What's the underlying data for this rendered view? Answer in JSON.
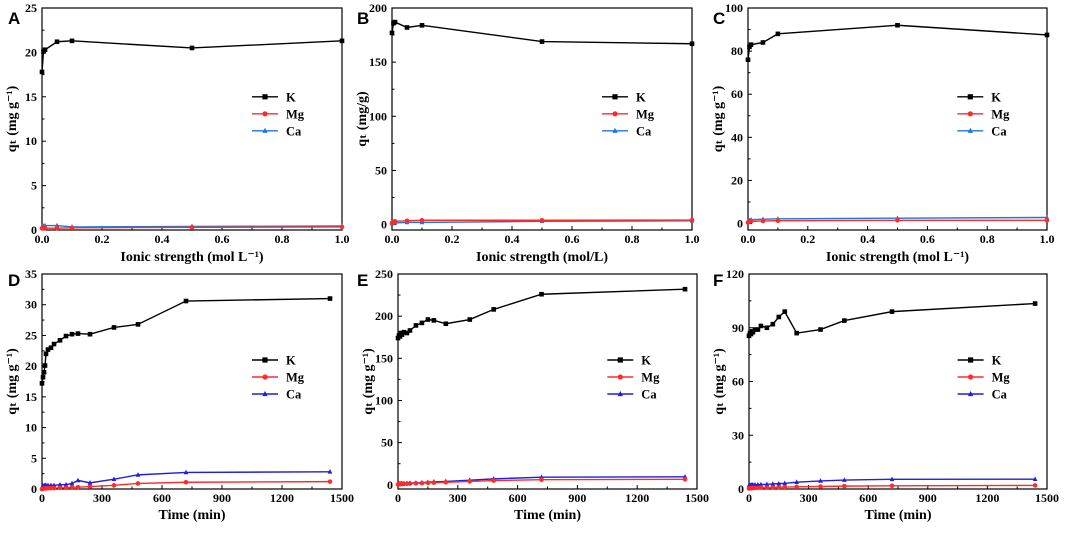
{
  "colors": {
    "K": "#000000",
    "Mg": "#ff2a2a",
    "Ca_top": "#1f77d4",
    "Ca_bottom": "#1f1fdc"
  },
  "chart_data": [
    {
      "panel": "A",
      "type": "line",
      "xlabel": "Ionic strength (mol L⁻¹)",
      "ylabel": "qₜ (mg g⁻¹)",
      "xlim": [
        0,
        1.0
      ],
      "ylim": [
        0,
        25
      ],
      "xticks": [
        "0.0",
        "0.2",
        "0.4",
        "0.6",
        "0.8",
        "1.0"
      ],
      "yticks": [
        "0",
        "5",
        "10",
        "15",
        "20",
        "25"
      ],
      "legend_position": "center-right",
      "series": [
        {
          "name": "K",
          "marker": "square",
          "x": [
            0,
            0.005,
            0.01,
            0.05,
            0.1,
            0.5,
            1.0
          ],
          "y": [
            17.8,
            20.1,
            20.3,
            21.2,
            21.3,
            20.5,
            21.3
          ]
        },
        {
          "name": "Mg",
          "marker": "circle",
          "x": [
            0,
            0.005,
            0.01,
            0.05,
            0.1,
            0.5,
            1.0
          ],
          "y": [
            0.2,
            0.2,
            0.2,
            0.2,
            0.25,
            0.3,
            0.35
          ]
        },
        {
          "name": "Ca",
          "marker": "triangle",
          "x": [
            0,
            0.005,
            0.01,
            0.05,
            0.1,
            0.5,
            1.0
          ],
          "y": [
            0.35,
            0.45,
            0.5,
            0.5,
            0.35,
            0.4,
            0.45
          ]
        }
      ]
    },
    {
      "panel": "B",
      "type": "line",
      "xlabel": "Ionic strength (mol/L)",
      "ylabel": "qₜ (mg/g)",
      "xlim": [
        0,
        1.0
      ],
      "ylim": [
        -5,
        200
      ],
      "xticks": [
        "0.0",
        "0.2",
        "0.4",
        "0.6",
        "0.8",
        "1.0"
      ],
      "yticks": [
        "0",
        "50",
        "100",
        "150",
        "200"
      ],
      "legend_position": "center-right",
      "series": [
        {
          "name": "K",
          "marker": "square",
          "x": [
            0,
            0.005,
            0.01,
            0.05,
            0.1,
            0.5,
            1.0
          ],
          "y": [
            177,
            186,
            187,
            182,
            184,
            169,
            167
          ]
        },
        {
          "name": "Mg",
          "marker": "circle",
          "x": [
            0,
            0.005,
            0.01,
            0.05,
            0.1,
            0.5,
            1.0
          ],
          "y": [
            1.5,
            2.5,
            3,
            3.5,
            4,
            4,
            4.2
          ]
        },
        {
          "name": "Ca",
          "marker": "triangle",
          "x": [
            0,
            0.005,
            0.01,
            0.05,
            0.1,
            0.5,
            1.0
          ],
          "y": [
            1,
            1.5,
            1.5,
            2,
            2,
            3,
            3.5
          ]
        }
      ]
    },
    {
      "panel": "C",
      "type": "line",
      "xlabel": "Ionic strength (mol L⁻¹)",
      "ylabel": "qₜ (mg g⁻¹)",
      "xlim": [
        0,
        1.0
      ],
      "ylim": [
        -3,
        100
      ],
      "xticks": [
        "0.0",
        "0.2",
        "0.4",
        "0.6",
        "0.8",
        "1.0"
      ],
      "yticks": [
        "0",
        "20",
        "40",
        "60",
        "80",
        "100"
      ],
      "legend_position": "center-right",
      "series": [
        {
          "name": "K",
          "marker": "square",
          "x": [
            0,
            0.005,
            0.01,
            0.05,
            0.1,
            0.5,
            1.0
          ],
          "y": [
            76,
            82,
            83,
            84,
            88,
            92,
            87.5
          ]
        },
        {
          "name": "Mg",
          "marker": "circle",
          "x": [
            0,
            0.005,
            0.01,
            0.05,
            0.1,
            0.5,
            1.0
          ],
          "y": [
            0.5,
            0.8,
            1,
            1.2,
            1.3,
            1.5,
            1.5
          ]
        },
        {
          "name": "Ca",
          "marker": "triangle",
          "x": [
            0,
            0.005,
            0.01,
            0.05,
            0.1,
            0.5,
            1.0
          ],
          "y": [
            1,
            1.5,
            1.8,
            2,
            2.2,
            2.5,
            2.8
          ]
        }
      ]
    },
    {
      "panel": "D",
      "type": "line",
      "xlabel": "Time (min)",
      "ylabel": "qₜ (mg g⁻¹)",
      "xlim": [
        0,
        1500
      ],
      "ylim": [
        0,
        35
      ],
      "xticks": [
        "0",
        "300",
        "600",
        "900",
        "1200",
        "1500"
      ],
      "yticks": [
        "0",
        "5",
        "10",
        "15",
        "20",
        "25",
        "30",
        "35"
      ],
      "legend_position": "center-right",
      "series": [
        {
          "name": "K",
          "marker": "square",
          "x": [
            0,
            5,
            10,
            15,
            20,
            30,
            45,
            60,
            90,
            120,
            150,
            180,
            240,
            360,
            480,
            720,
            1440
          ],
          "y": [
            17.2,
            18.2,
            19.0,
            20.1,
            22.0,
            22.7,
            23.0,
            23.6,
            24.2,
            24.9,
            25.2,
            25.3,
            25.2,
            26.3,
            26.8,
            30.6,
            31.0
          ]
        },
        {
          "name": "Mg",
          "marker": "circle",
          "x": [
            0,
            5,
            10,
            15,
            20,
            30,
            45,
            60,
            90,
            120,
            150,
            180,
            240,
            360,
            480,
            720,
            1440
          ],
          "y": [
            0,
            0.05,
            0.1,
            0.1,
            0.1,
            0.15,
            0.15,
            0.15,
            0.2,
            0.2,
            0.3,
            0.3,
            0.4,
            0.6,
            0.9,
            1.1,
            1.2
          ]
        },
        {
          "name": "Ca",
          "marker": "triangle",
          "x": [
            0,
            5,
            10,
            15,
            20,
            30,
            45,
            60,
            90,
            120,
            150,
            180,
            240,
            360,
            480,
            720,
            1440
          ],
          "y": [
            0.3,
            0.5,
            0.5,
            0.6,
            0.6,
            0.6,
            0.6,
            0.6,
            0.7,
            0.7,
            0.9,
            1.4,
            1.0,
            1.6,
            2.3,
            2.7,
            2.8
          ]
        }
      ]
    },
    {
      "panel": "E",
      "type": "line",
      "xlabel": "Time (min)",
      "ylabel": "qₜ (mg g⁻¹)",
      "xlim": [
        0,
        1500
      ],
      "ylim": [
        -5,
        250
      ],
      "xticks": [
        "0",
        "300",
        "600",
        "900",
        "1200",
        "1500"
      ],
      "yticks": [
        "0",
        "50",
        "100",
        "150",
        "200",
        "250"
      ],
      "legend_position": "center-right",
      "series": [
        {
          "name": "K",
          "marker": "square",
          "x": [
            0,
            5,
            10,
            15,
            20,
            30,
            45,
            60,
            90,
            120,
            150,
            180,
            240,
            360,
            480,
            720,
            1440
          ],
          "y": [
            174,
            177,
            176,
            180,
            178,
            181,
            180,
            183,
            189,
            192,
            196,
            195,
            191,
            196,
            208,
            226,
            232
          ]
        },
        {
          "name": "Mg",
          "marker": "circle",
          "x": [
            0,
            5,
            10,
            15,
            20,
            30,
            45,
            60,
            90,
            120,
            150,
            180,
            240,
            360,
            480,
            720,
            1440
          ],
          "y": [
            0.5,
            0.6,
            0.8,
            1,
            1,
            1.2,
            1.3,
            1.5,
            1.8,
            2,
            2.3,
            2.5,
            3,
            4,
            5,
            6,
            6.5
          ]
        },
        {
          "name": "Ca",
          "marker": "triangle",
          "x": [
            0,
            5,
            10,
            15,
            20,
            30,
            45,
            60,
            90,
            120,
            150,
            180,
            240,
            360,
            480,
            720,
            1440
          ],
          "y": [
            1,
            1.2,
            1.3,
            1.5,
            1.5,
            1.6,
            1.8,
            2,
            2.2,
            2.5,
            3,
            3.5,
            4,
            5.5,
            7,
            9,
            9.5
          ]
        }
      ]
    },
    {
      "panel": "F",
      "type": "line",
      "xlabel": "Time (min)",
      "ylabel": "qₜ (mg g⁻¹)",
      "xlim": [
        0,
        1500
      ],
      "ylim": [
        0,
        120
      ],
      "xticks": [
        "0",
        "300",
        "600",
        "900",
        "1200",
        "1500"
      ],
      "yticks": [
        "0",
        "30",
        "60",
        "90",
        "120"
      ],
      "legend_position": "center-right",
      "series": [
        {
          "name": "K",
          "marker": "square",
          "x": [
            0,
            5,
            10,
            15,
            20,
            30,
            45,
            60,
            90,
            120,
            150,
            180,
            240,
            360,
            480,
            720,
            1440
          ],
          "y": [
            85.5,
            87,
            86.5,
            88,
            87.5,
            89,
            89,
            91,
            90,
            92,
            96,
            99,
            87,
            89,
            94,
            99,
            103.5
          ]
        },
        {
          "name": "Mg",
          "marker": "circle",
          "x": [
            0,
            5,
            10,
            15,
            20,
            30,
            45,
            60,
            90,
            120,
            150,
            180,
            240,
            360,
            480,
            720,
            1440
          ],
          "y": [
            0.3,
            0.4,
            0.5,
            0.5,
            0.6,
            0.6,
            0.7,
            0.8,
            0.8,
            0.9,
            1,
            1.1,
            1.2,
            1.4,
            1.6,
            1.8,
            2
          ]
        },
        {
          "name": "Ca",
          "marker": "triangle",
          "x": [
            0,
            5,
            10,
            15,
            20,
            30,
            45,
            60,
            90,
            120,
            150,
            180,
            240,
            360,
            480,
            720,
            1440
          ],
          "y": [
            2,
            2.1,
            2.2,
            2.3,
            2.3,
            2.4,
            2.4,
            2.5,
            2.6,
            2.8,
            3,
            3.2,
            3.8,
            4.5,
            5,
            5.4,
            5.5
          ]
        }
      ]
    }
  ]
}
